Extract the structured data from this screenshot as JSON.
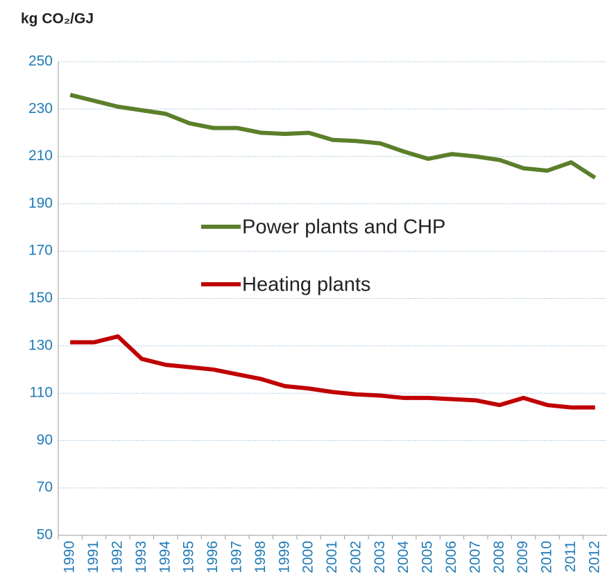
{
  "chart_data": {
    "type": "line",
    "y_axis_label": "kg CO₂/GJ",
    "categories": [
      "1990",
      "1991",
      "1992",
      "1993",
      "1994",
      "1995",
      "1996",
      "1997",
      "1998",
      "1999",
      "2000",
      "2001",
      "2002",
      "2003",
      "2004",
      "2005",
      "2006",
      "2007",
      "2008",
      "2009",
      "2010",
      "2011",
      "2012"
    ],
    "series": [
      {
        "name": "Power plants and CHP",
        "color": "#5b7f2a",
        "values": [
          236,
          233.5,
          231,
          229.5,
          228,
          224,
          222,
          222,
          220,
          219.5,
          220,
          217,
          216.5,
          215.5,
          212,
          209,
          211,
          210,
          208.5,
          205,
          204,
          207.5,
          201
        ]
      },
      {
        "name": "Heating plants",
        "color": "#c00000",
        "values": [
          131.5,
          131.5,
          134,
          124.5,
          122,
          121,
          120,
          118,
          116,
          113,
          112,
          110.5,
          109.5,
          109,
          108,
          108,
          107.5,
          107,
          105,
          108,
          105,
          104,
          104
        ]
      }
    ],
    "ylim": [
      50,
      250
    ],
    "yticks": [
      50,
      70,
      90,
      110,
      130,
      150,
      170,
      190,
      210,
      230,
      250
    ],
    "grid": true
  }
}
